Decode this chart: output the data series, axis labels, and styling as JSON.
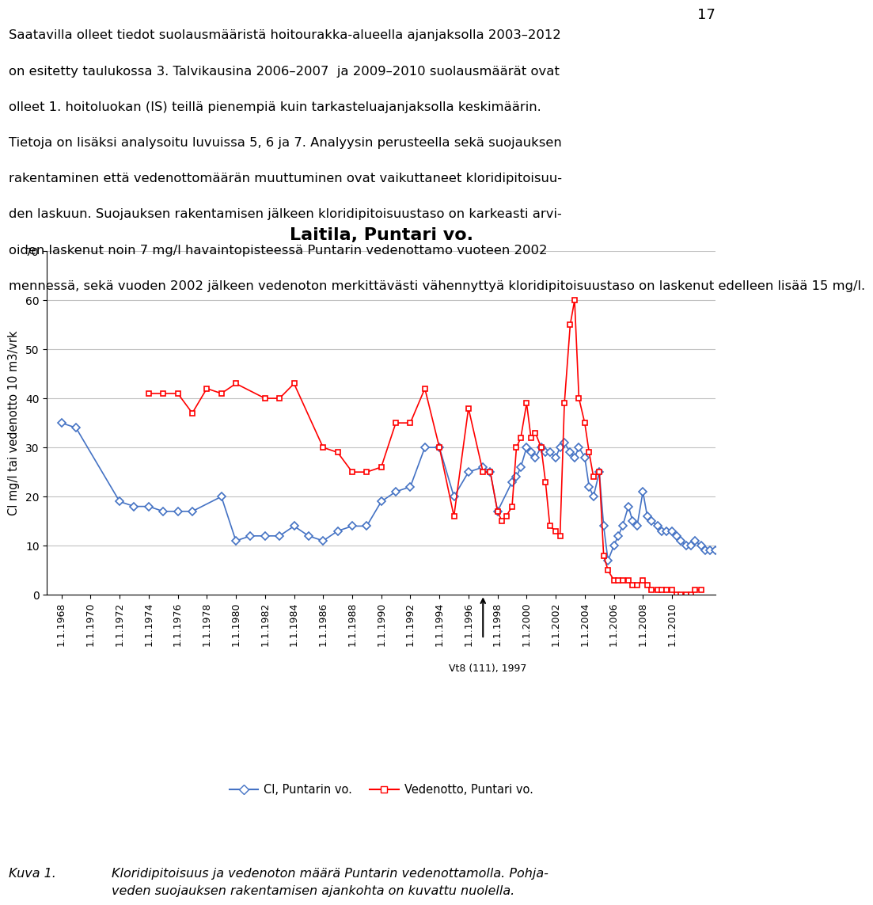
{
  "title": "Laitila, Puntari vo.",
  "ylabel": "Cl mg/l tai vedenotto 10 m3/vrk",
  "ylim": [
    0,
    70
  ],
  "yticks": [
    0,
    10,
    20,
    30,
    40,
    50,
    60,
    70
  ],
  "annotation_text": "Vt8 (111), 1997",
  "annotation_year": 1997,
  "caption_label": "Kuva 1.",
  "caption_text": "Kloridipitoisuus ja vedenoton määrä Puntarin vedenottamolla. Pohja-\nveden suojauksen rakentamisen ajankohta on kuvattu nuolella.",
  "header_lines": [
    "Saatavilla olleet tiedot suolausmääristä hoitourakka-alueella ajanjaksolla 2003–2012",
    "on esitetty taulukossa 3. Talvikausina 2006–2007  ja 2009–2010 suolausmäärät ovat",
    "olleet 1. hoitoluokan (IS) teillä pienempiä kuin tarkasteluajanjaksolla keskimäärin.",
    "Tietoja on lisäksi analysoitu luvuissa 5, 6 ja 7. Analyysin perusteella sekä suojauksen",
    "rakentaminen että vedenottomäärän muuttuminen ovat vaikuttaneet kloridipitoisuu-",
    "den laskuun. Suojauksen rakentamisen jälkeen kloridipitoisuustaso on karkeasti arvi-",
    "oiden laskenut noin 7 mg/l havaintopisteessä Puntarin vedenottamo vuoteen 2002",
    "mennessä, sekä vuoden 2002 jälkeen vedenoton merkittävästi vähennyttyä kloridipitoisuustaso on laskenut edelleen lisää 15 mg/l."
  ],
  "page_number": "17",
  "cl_series": {
    "label": "Cl, Puntarin vo.",
    "color": "#4472C4",
    "data": [
      [
        1968,
        35
      ],
      [
        1969,
        34
      ],
      [
        1972,
        19
      ],
      [
        1973,
        18
      ],
      [
        1974,
        18
      ],
      [
        1975,
        17
      ],
      [
        1976,
        17
      ],
      [
        1977,
        17
      ],
      [
        1979,
        20
      ],
      [
        1980,
        11
      ],
      [
        1981,
        12
      ],
      [
        1982,
        12
      ],
      [
        1983,
        12
      ],
      [
        1984,
        14
      ],
      [
        1985,
        12
      ],
      [
        1986,
        11
      ],
      [
        1987,
        13
      ],
      [
        1988,
        14
      ],
      [
        1989,
        14
      ],
      [
        1990,
        19
      ],
      [
        1991,
        21
      ],
      [
        1992,
        22
      ],
      [
        1993,
        30
      ],
      [
        1994,
        30
      ],
      [
        1995,
        20
      ],
      [
        1996,
        25
      ],
      [
        1997,
        26
      ],
      [
        1997.5,
        25
      ],
      [
        1998,
        17
      ],
      [
        1999,
        23
      ],
      [
        1999.3,
        24
      ],
      [
        1999.6,
        26
      ],
      [
        2000,
        30
      ],
      [
        2000.3,
        29
      ],
      [
        2000.6,
        28
      ],
      [
        2001,
        30
      ],
      [
        2001.3,
        29
      ],
      [
        2001.6,
        29
      ],
      [
        2002,
        28
      ],
      [
        2002.3,
        30
      ],
      [
        2002.6,
        31
      ],
      [
        2003,
        29
      ],
      [
        2003.3,
        28
      ],
      [
        2003.6,
        30
      ],
      [
        2004,
        28
      ],
      [
        2004.3,
        22
      ],
      [
        2004.6,
        20
      ],
      [
        2005,
        25
      ],
      [
        2005.3,
        14
      ],
      [
        2005.6,
        7
      ],
      [
        2006,
        10
      ],
      [
        2006.3,
        12
      ],
      [
        2006.6,
        14
      ],
      [
        2007,
        18
      ],
      [
        2007.3,
        15
      ],
      [
        2007.6,
        14
      ],
      [
        2008,
        21
      ],
      [
        2008.3,
        16
      ],
      [
        2008.6,
        15
      ],
      [
        2009,
        14
      ],
      [
        2009.3,
        13
      ],
      [
        2009.6,
        13
      ],
      [
        2010,
        13
      ],
      [
        2010.3,
        12
      ],
      [
        2010.6,
        11
      ],
      [
        2011,
        10
      ],
      [
        2011.3,
        10
      ],
      [
        2011.6,
        11
      ],
      [
        2012,
        10
      ],
      [
        2012.3,
        9
      ],
      [
        2012.6,
        9
      ],
      [
        2013,
        9
      ]
    ]
  },
  "vedenotto_series": {
    "label": "Vedenotto, Puntari vo.",
    "color": "#FF0000",
    "data": [
      [
        1974,
        41
      ],
      [
        1975,
        41
      ],
      [
        1976,
        41
      ],
      [
        1977,
        37
      ],
      [
        1978,
        42
      ],
      [
        1979,
        41
      ],
      [
        1980,
        43
      ],
      [
        1982,
        40
      ],
      [
        1983,
        40
      ],
      [
        1984,
        43
      ],
      [
        1986,
        30
      ],
      [
        1987,
        29
      ],
      [
        1988,
        25
      ],
      [
        1989,
        25
      ],
      [
        1990,
        26
      ],
      [
        1991,
        35
      ],
      [
        1992,
        35
      ],
      [
        1993,
        42
      ],
      [
        1994,
        30
      ],
      [
        1995,
        16
      ],
      [
        1996,
        38
      ],
      [
        1997,
        25
      ],
      [
        1997.5,
        25
      ],
      [
        1998,
        17
      ],
      [
        1998.3,
        15
      ],
      [
        1998.6,
        16
      ],
      [
        1999,
        18
      ],
      [
        1999.3,
        30
      ],
      [
        1999.6,
        32
      ],
      [
        2000,
        39
      ],
      [
        2000.3,
        32
      ],
      [
        2000.6,
        33
      ],
      [
        2001,
        30
      ],
      [
        2001.3,
        23
      ],
      [
        2001.6,
        14
      ],
      [
        2002,
        13
      ],
      [
        2002.3,
        12
      ],
      [
        2002.6,
        39
      ],
      [
        2003,
        55
      ],
      [
        2003.3,
        60
      ],
      [
        2003.6,
        40
      ],
      [
        2004,
        35
      ],
      [
        2004.3,
        29
      ],
      [
        2004.6,
        24
      ],
      [
        2005,
        25
      ],
      [
        2005.3,
        8
      ],
      [
        2005.6,
        5
      ],
      [
        2006,
        3
      ],
      [
        2006.3,
        3
      ],
      [
        2006.6,
        3
      ],
      [
        2007,
        3
      ],
      [
        2007.3,
        2
      ],
      [
        2007.6,
        2
      ],
      [
        2008,
        3
      ],
      [
        2008.3,
        2
      ],
      [
        2008.6,
        1
      ],
      [
        2009,
        1
      ],
      [
        2009.3,
        1
      ],
      [
        2009.6,
        1
      ],
      [
        2010,
        1
      ],
      [
        2010.3,
        0
      ],
      [
        2010.6,
        0
      ],
      [
        2011,
        0
      ],
      [
        2011.3,
        0
      ],
      [
        2011.6,
        1
      ],
      [
        2012,
        1
      ]
    ]
  },
  "xtick_years": [
    1968,
    1970,
    1972,
    1974,
    1976,
    1978,
    1980,
    1982,
    1984,
    1986,
    1988,
    1990,
    1992,
    1994,
    1996,
    1998,
    2000,
    2002,
    2004,
    2006,
    2008,
    2010
  ],
  "xlim": [
    1967,
    2013
  ]
}
